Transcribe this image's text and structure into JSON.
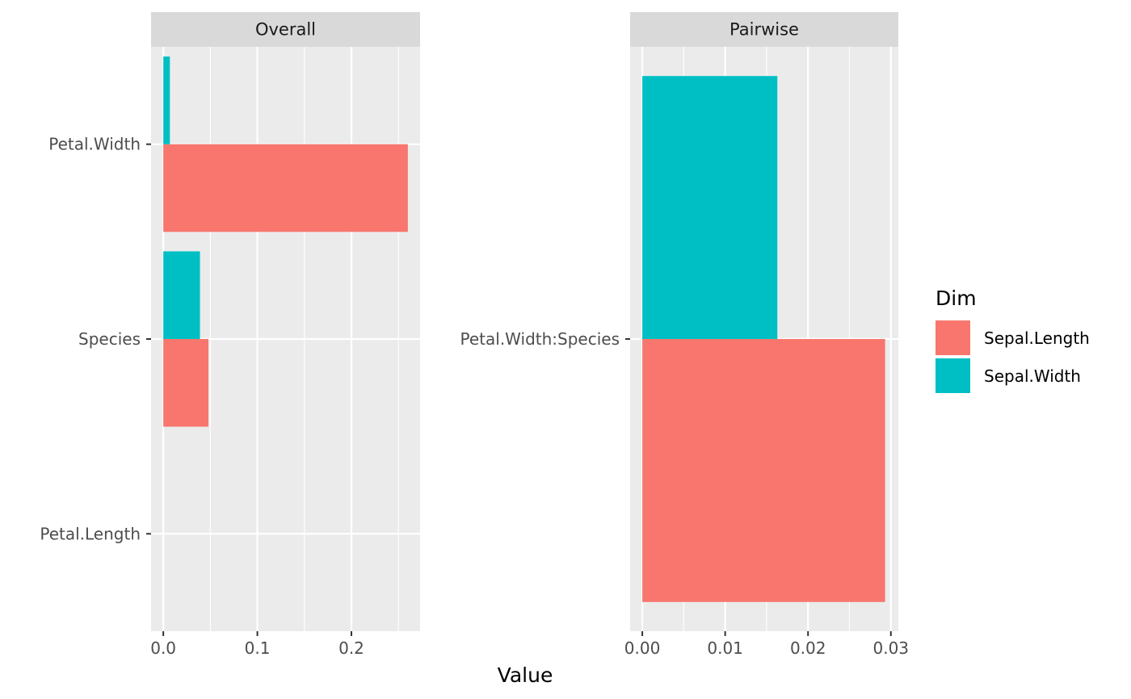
{
  "chart_data": {
    "type": "bar",
    "orientation": "horizontal",
    "xlabel": "Value",
    "ylabel": "",
    "legend": {
      "title": "Dim",
      "placement": "right",
      "entries": [
        {
          "label": "Sepal.Length",
          "color": "#F8766D"
        },
        {
          "label": "Sepal.Width",
          "color": "#00BFC4"
        }
      ]
    },
    "panels": [
      {
        "strip": "Overall",
        "categories": [
          "Petal.Width",
          "Species",
          "Petal.Length"
        ],
        "xlim": [
          -0.013,
          0.273
        ],
        "xticks": [
          0.0,
          0.1,
          0.2
        ],
        "xtick_labels": [
          "0.0",
          "0.1",
          "0.2"
        ],
        "series": [
          {
            "name": "Sepal.Length",
            "values": [
              0.26,
              0.048,
              0
            ]
          },
          {
            "name": "Sepal.Width",
            "values": [
              0.007,
              0.039,
              0
            ]
          }
        ]
      },
      {
        "strip": "Pairwise",
        "categories": [
          "Petal.Width:Species"
        ],
        "xlim": [
          -0.00147,
          0.0309
        ],
        "xticks": [
          0.0,
          0.01,
          0.02,
          0.03
        ],
        "xtick_labels": [
          "0.00",
          "0.01",
          "0.02",
          "0.03"
        ],
        "series": [
          {
            "name": "Sepal.Length",
            "values": [
              0.0293
            ]
          },
          {
            "name": "Sepal.Width",
            "values": [
              0.0163
            ]
          }
        ]
      }
    ],
    "grid": true
  },
  "colors": {
    "panel_bg": "#EBEBEB",
    "strip_bg": "#D9D9D9",
    "grid": "#FFFFFF",
    "tick": "#333333"
  }
}
